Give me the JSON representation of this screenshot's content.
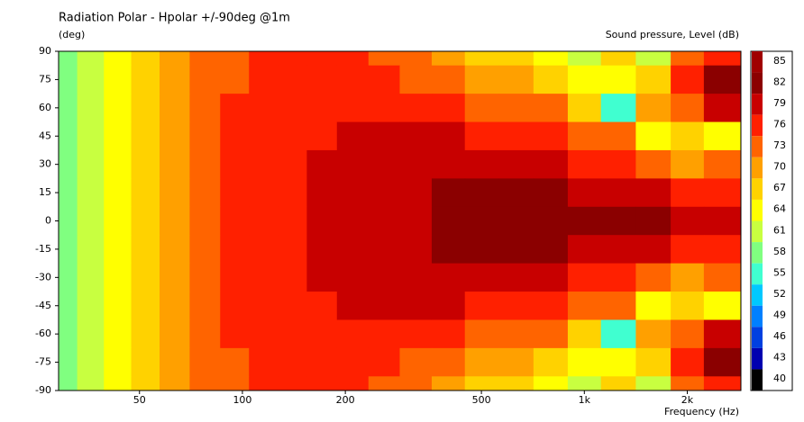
{
  "chart_data": {
    "type": "heatmap",
    "title": "Radiation Polar - Hpolar +/-90deg @1m",
    "y_label": "(deg)",
    "x_label": "Frequency  (Hz)",
    "colorbar_label": "Sound pressure, Level  (dB)",
    "x_scale": "log",
    "xlim": [
      29,
      2870
    ],
    "ylim": [
      -90,
      90
    ],
    "xticks": [
      50,
      100,
      200,
      500,
      {
        "value": 1000,
        "label": "1k"
      },
      {
        "value": 2000,
        "label": "2k"
      }
    ],
    "yticks": [
      90,
      75,
      60,
      45,
      30,
      15,
      0,
      -15,
      -30,
      -45,
      -60,
      -75,
      -90
    ],
    "x": [
      30,
      36,
      43,
      52,
      63,
      78,
      95,
      115,
      140,
      170,
      210,
      260,
      320,
      400,
      500,
      630,
      800,
      1000,
      1250,
      1600,
      2000,
      2500
    ],
    "y": [
      90,
      75,
      60,
      45,
      30,
      15,
      0,
      -15,
      -30,
      -45,
      -60,
      -75,
      -90
    ],
    "z": [
      [
        58,
        61,
        64,
        67,
        70,
        73,
        73,
        76,
        76,
        76,
        76,
        73,
        73,
        70,
        67,
        67,
        64,
        61,
        67,
        61,
        73,
        76
      ],
      [
        58,
        61,
        64,
        67,
        70,
        73,
        73,
        76,
        76,
        76,
        76,
        76,
        73,
        73,
        70,
        70,
        67,
        64,
        64,
        67,
        76,
        82
      ],
      [
        58,
        61,
        64,
        67,
        70,
        73,
        76,
        76,
        76,
        76,
        76,
        76,
        76,
        76,
        73,
        73,
        73,
        67,
        55,
        70,
        73,
        79
      ],
      [
        58,
        61,
        64,
        67,
        70,
        73,
        76,
        76,
        76,
        76,
        79,
        79,
        79,
        79,
        76,
        76,
        76,
        73,
        73,
        64,
        67,
        64
      ],
      [
        58,
        61,
        64,
        67,
        70,
        73,
        76,
        76,
        76,
        79,
        79,
        79,
        79,
        79,
        79,
        79,
        79,
        76,
        76,
        73,
        70,
        73
      ],
      [
        58,
        61,
        64,
        67,
        70,
        73,
        76,
        76,
        76,
        79,
        79,
        79,
        79,
        82,
        82,
        82,
        82,
        79,
        79,
        79,
        76,
        76
      ],
      [
        58,
        61,
        64,
        67,
        70,
        73,
        76,
        76,
        76,
        79,
        79,
        79,
        79,
        82,
        82,
        82,
        82,
        82,
        82,
        82,
        79,
        79
      ],
      [
        58,
        61,
        64,
        67,
        70,
        73,
        76,
        76,
        76,
        79,
        79,
        79,
        79,
        82,
        82,
        82,
        82,
        79,
        79,
        79,
        76,
        76
      ],
      [
        58,
        61,
        64,
        67,
        70,
        73,
        76,
        76,
        76,
        79,
        79,
        79,
        79,
        79,
        79,
        79,
        79,
        76,
        76,
        73,
        70,
        73
      ],
      [
        58,
        61,
        64,
        67,
        70,
        73,
        76,
        76,
        76,
        76,
        79,
        79,
        79,
        79,
        76,
        76,
        76,
        73,
        73,
        64,
        67,
        64
      ],
      [
        58,
        61,
        64,
        67,
        70,
        73,
        76,
        76,
        76,
        76,
        76,
        76,
        76,
        76,
        73,
        73,
        73,
        67,
        55,
        70,
        73,
        79
      ],
      [
        58,
        61,
        64,
        67,
        70,
        73,
        73,
        76,
        76,
        76,
        76,
        76,
        73,
        73,
        70,
        70,
        67,
        64,
        64,
        67,
        76,
        82
      ],
      [
        58,
        61,
        64,
        67,
        70,
        73,
        73,
        76,
        76,
        76,
        76,
        73,
        73,
        70,
        67,
        67,
        64,
        61,
        67,
        61,
        73,
        76
      ]
    ],
    "levels": [
      85,
      82,
      79,
      76,
      73,
      70,
      67,
      64,
      61,
      58,
      55,
      52,
      49,
      46,
      43,
      40
    ],
    "colors": [
      "#a00000",
      "#8b0000",
      "#c80000",
      "#ff2000",
      "#ff6400",
      "#ffa000",
      "#ffd200",
      "#ffff00",
      "#c8ff40",
      "#80ff80",
      "#40ffd0",
      "#00c8ff",
      "#0080ff",
      "#0040e0",
      "#0000b0",
      "#000000"
    ]
  }
}
